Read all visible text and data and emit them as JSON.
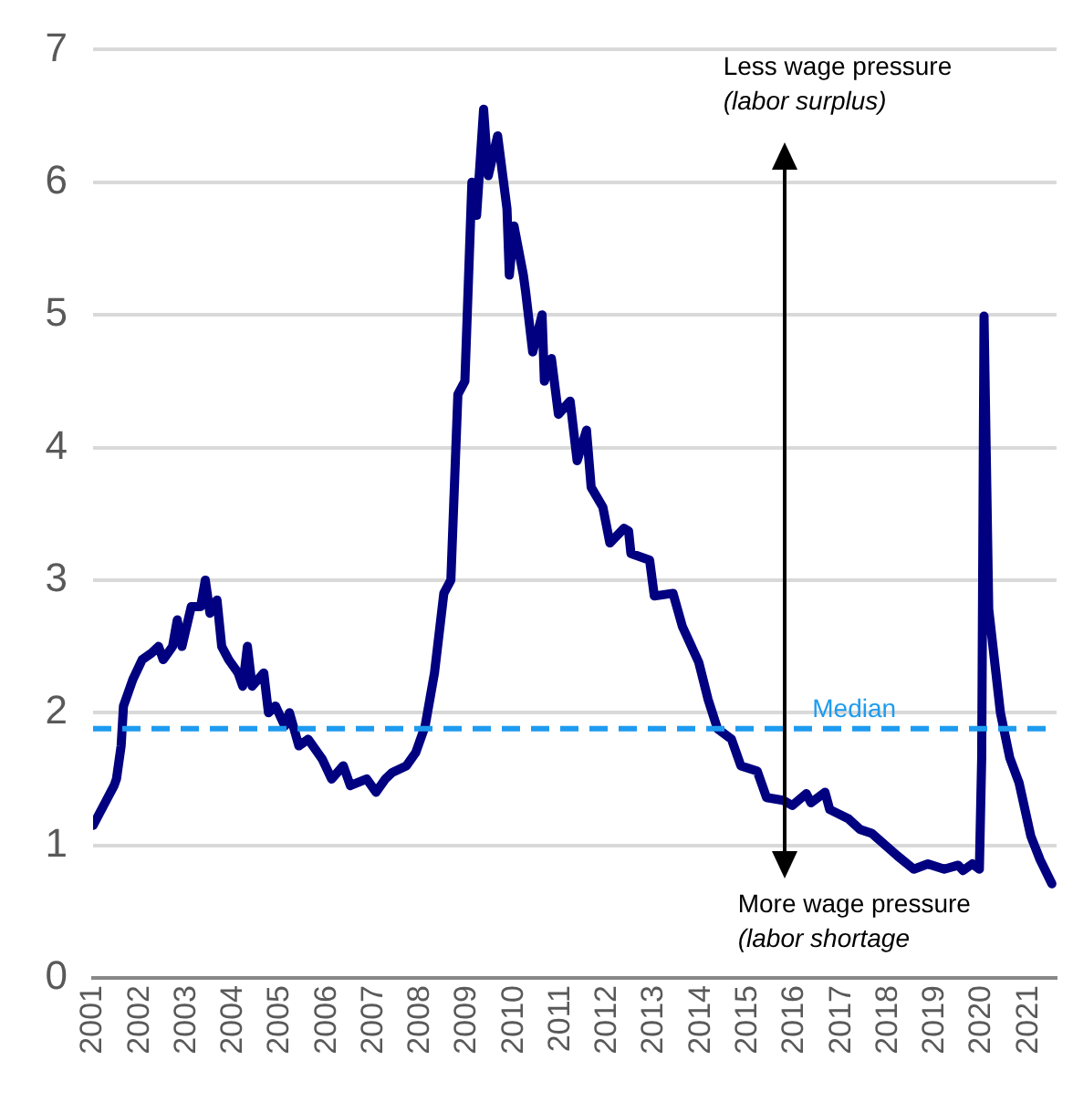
{
  "chart_data": {
    "type": "line",
    "x": [
      2001.0,
      2001.3,
      2001.45,
      2001.5,
      2001.6,
      2001.65,
      2001.85,
      2002.05,
      2002.25,
      2002.4,
      2002.5,
      2002.7,
      2002.8,
      2002.9,
      2003.1,
      2003.3,
      2003.4,
      2003.5,
      2003.65,
      2003.75,
      2003.9,
      2004.1,
      2004.2,
      2004.3,
      2004.4,
      2004.65,
      2004.75,
      2004.9,
      2005.1,
      2005.2,
      2005.4,
      2005.6,
      2005.9,
      2006.1,
      2006.35,
      2006.5,
      2006.85,
      2007.05,
      2007.25,
      2007.4,
      2007.7,
      2007.9,
      2008.1,
      2008.3,
      2008.5,
      2008.65,
      2008.8,
      2008.95,
      2009.1,
      2009.2,
      2009.35,
      2009.45,
      2009.65,
      2009.85,
      2009.9,
      2010.0,
      2010.2,
      2010.25,
      2010.4,
      2010.6,
      2010.65,
      2010.8,
      2010.95,
      2011.2,
      2011.35,
      2011.55,
      2011.65,
      2011.9,
      2012.05,
      2012.35,
      2012.45,
      2012.5,
      2012.9,
      2013.0,
      2013.4,
      2013.6,
      2013.95,
      2014.15,
      2014.35,
      2014.65,
      2014.85,
      2015.2,
      2015.4,
      2015.75,
      2015.95,
      2016.25,
      2016.35,
      2016.65,
      2016.75,
      2017.15,
      2017.4,
      2017.65,
      2018.2,
      2018.55,
      2018.85,
      2019.2,
      2019.5,
      2019.6,
      2019.8,
      2019.95,
      2020.0,
      2020.05,
      2020.15,
      2020.4,
      2020.6,
      2020.8,
      2021.05,
      2021.25,
      2021.5
    ],
    "series": [
      {
        "color": "#000080",
        "values": [
          1.15,
          1.35,
          1.45,
          1.5,
          1.75,
          2.05,
          2.25,
          2.4,
          2.45,
          2.5,
          2.4,
          2.5,
          2.7,
          2.5,
          2.8,
          2.8,
          3.0,
          2.75,
          2.85,
          2.5,
          2.4,
          2.3,
          2.2,
          2.5,
          2.2,
          2.3,
          2.0,
          2.05,
          1.9,
          2.0,
          1.75,
          1.8,
          1.65,
          1.5,
          1.6,
          1.45,
          1.5,
          1.4,
          1.5,
          1.55,
          1.6,
          1.7,
          1.9,
          2.3,
          2.9,
          3.0,
          4.4,
          4.5,
          6.0,
          5.75,
          6.55,
          6.05,
          6.35,
          5.8,
          5.3,
          5.67,
          5.3,
          5.17,
          4.72,
          5.0,
          4.5,
          4.67,
          4.25,
          4.35,
          3.9,
          4.13,
          3.7,
          3.55,
          3.28,
          3.39,
          3.37,
          3.2,
          3.15,
          2.88,
          2.9,
          2.65,
          2.38,
          2.1,
          1.88,
          1.8,
          1.6,
          1.56,
          1.36,
          1.34,
          1.3,
          1.39,
          1.32,
          1.4,
          1.27,
          1.2,
          1.12,
          1.09,
          0.92,
          0.82,
          0.86,
          0.82,
          0.85,
          0.81,
          0.86,
          0.82,
          1.66,
          4.99,
          2.78,
          2.0,
          1.66,
          1.47,
          1.07,
          0.89,
          0.71
        ]
      }
    ],
    "xlim": [
      2001,
      2021.6
    ],
    "xticks": [
      2001,
      2002,
      2003,
      2004,
      2005,
      2006,
      2007,
      2008,
      2009,
      2010,
      2011,
      2012,
      2013,
      2014,
      2015,
      2016,
      2017,
      2018,
      2019,
      2020,
      2021
    ],
    "ylim": [
      0,
      7
    ],
    "yticks": [
      0,
      1,
      2,
      3,
      4,
      5,
      6,
      7
    ],
    "grid": "y",
    "marker": "none",
    "line_style": "solid",
    "ref_lines": [
      {
        "axis": "y",
        "value": 1.88,
        "label": "Median",
        "color": "#1e9bf0",
        "line_style": "dashed"
      }
    ],
    "annotations": [
      "Less wage pressure",
      "(labor surplus)",
      "More wage pressure",
      "(labor shortage"
    ]
  }
}
